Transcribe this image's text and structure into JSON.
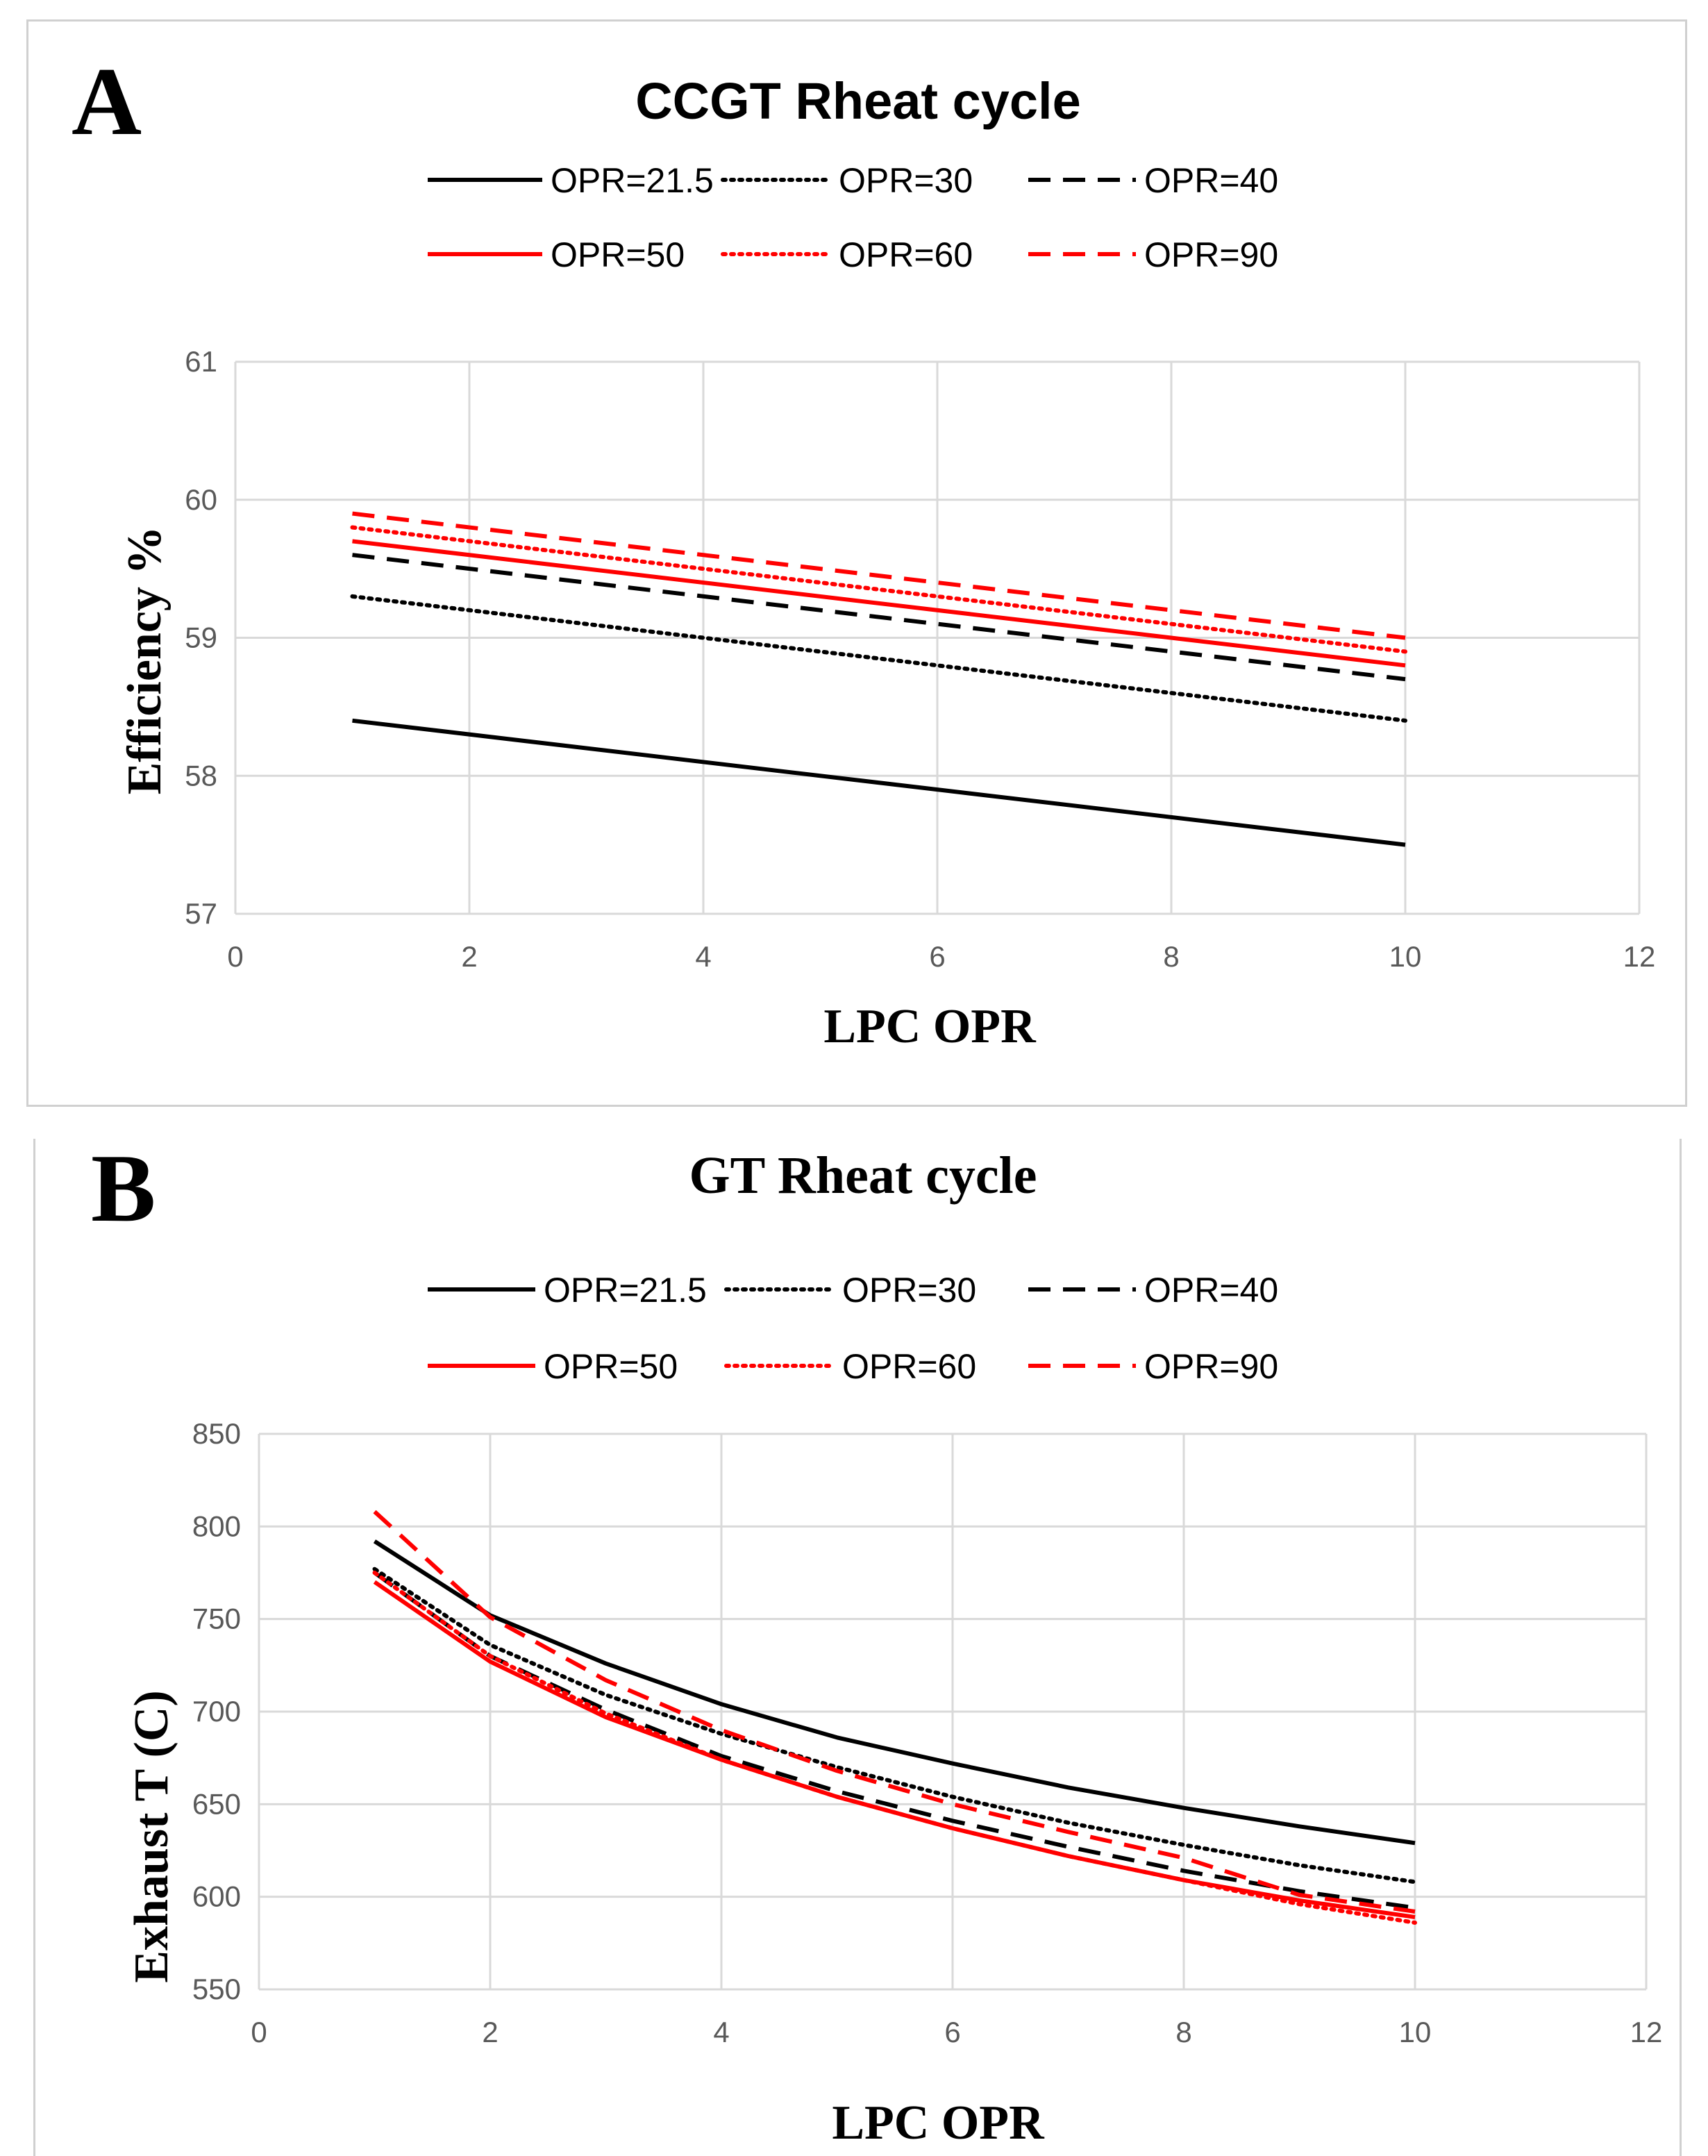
{
  "chart_data": [
    {
      "type": "line",
      "panel_label": "A",
      "title": "CCGT Rheat cycle",
      "xlabel": "LPC OPR",
      "ylabel": "Efficiency %",
      "xlim": [
        0,
        12
      ],
      "ylim": [
        57,
        61
      ],
      "xticks": [
        0,
        2,
        4,
        6,
        8,
        10,
        12
      ],
      "yticks": [
        57,
        58,
        59,
        60,
        61
      ],
      "grid": true,
      "legend_position": "top",
      "series": [
        {
          "name": "OPR=21.5",
          "color": "#000000",
          "style": "solid",
          "x": [
            1,
            10
          ],
          "y": [
            58.4,
            57.5
          ]
        },
        {
          "name": "OPR=30",
          "color": "#000000",
          "style": "dotted",
          "x": [
            1,
            10
          ],
          "y": [
            59.3,
            58.4
          ]
        },
        {
          "name": "OPR=40",
          "color": "#000000",
          "style": "dashed",
          "x": [
            1,
            10
          ],
          "y": [
            59.6,
            58.7
          ]
        },
        {
          "name": "OPR=50",
          "color": "#ff0000",
          "style": "solid",
          "x": [
            1,
            10
          ],
          "y": [
            59.7,
            58.8
          ]
        },
        {
          "name": "OPR=60",
          "color": "#ff0000",
          "style": "dotted",
          "x": [
            1,
            10
          ],
          "y": [
            59.8,
            58.9
          ]
        },
        {
          "name": "OPR=90",
          "color": "#ff0000",
          "style": "dashed",
          "x": [
            1,
            10
          ],
          "y": [
            59.9,
            59.0
          ]
        }
      ]
    },
    {
      "type": "line",
      "panel_label": "B",
      "title": "GT Rheat cycle",
      "xlabel": "LPC OPR",
      "ylabel": "Exhaust  T (C)",
      "xlim": [
        0,
        12
      ],
      "ylim": [
        550,
        850
      ],
      "xticks": [
        0,
        2,
        4,
        6,
        8,
        10,
        12
      ],
      "yticks": [
        550,
        600,
        650,
        700,
        750,
        800,
        850
      ],
      "grid": true,
      "legend_position": "top",
      "series": [
        {
          "name": "OPR=21.5",
          "color": "#000000",
          "style": "solid",
          "x": [
            1,
            2,
            3,
            4,
            5,
            6,
            7,
            8,
            9,
            10
          ],
          "y": [
            792,
            752,
            726,
            704,
            686,
            672,
            659,
            648,
            638,
            629
          ]
        },
        {
          "name": "OPR=30",
          "color": "#000000",
          "style": "dotted",
          "x": [
            1,
            2,
            3,
            4,
            5,
            6,
            7,
            8,
            9,
            10
          ],
          "y": [
            777,
            736,
            709,
            688,
            670,
            654,
            640,
            628,
            617,
            608
          ]
        },
        {
          "name": "OPR=40",
          "color": "#000000",
          "style": "dashed",
          "x": [
            1,
            2,
            3,
            4,
            5,
            6,
            7,
            8,
            9,
            10
          ],
          "y": [
            775,
            730,
            701,
            676,
            657,
            641,
            627,
            614,
            603,
            594
          ]
        },
        {
          "name": "OPR=50",
          "color": "#ff0000",
          "style": "solid",
          "x": [
            1,
            2,
            3,
            4,
            5,
            6,
            7,
            8,
            9,
            10
          ],
          "y": [
            770,
            727,
            697,
            674,
            654,
            637,
            622,
            609,
            598,
            589
          ]
        },
        {
          "name": "OPR=60",
          "color": "#ff0000",
          "style": "dotted",
          "x": [
            1,
            2,
            3,
            4,
            5,
            6,
            7,
            8,
            9,
            10
          ],
          "y": [
            775,
            730,
            699,
            674,
            654,
            637,
            622,
            609,
            596,
            586
          ]
        },
        {
          "name": "OPR=90",
          "color": "#ff0000",
          "style": "dashed",
          "x": [
            1,
            2,
            3,
            4,
            5,
            6,
            7,
            8,
            9,
            10
          ],
          "y": [
            808,
            751,
            717,
            690,
            668,
            650,
            635,
            621,
            601,
            592
          ]
        }
      ]
    }
  ]
}
